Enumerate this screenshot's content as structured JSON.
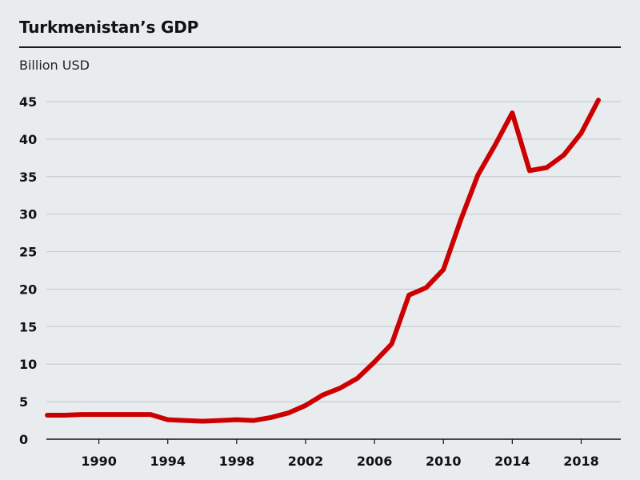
{
  "chart_data": {
    "type": "line",
    "title": "Turkmenistan’s GDP",
    "ylabel": "Billion USD",
    "xlabel": "",
    "ylim": [
      0,
      45
    ],
    "xlim": [
      1987,
      2019
    ],
    "yticks": [
      0,
      5,
      10,
      15,
      20,
      25,
      30,
      35,
      40,
      45
    ],
    "xticks": [
      1990,
      1994,
      1998,
      2002,
      2006,
      2010,
      2014,
      2018
    ],
    "grid": true,
    "colors": {
      "line": "#cc0000",
      "grid": "#c9cbce",
      "axis": "#111111",
      "background": "#e9ecef"
    },
    "series": [
      {
        "x": [
          1987,
          1988,
          1989,
          1990,
          1991,
          1992,
          1993,
          1994,
          1995,
          1996,
          1997,
          1998,
          1999,
          2000,
          2001,
          2002,
          2003,
          2004,
          2005,
          2006,
          2007,
          2008,
          2009,
          2010,
          2011,
          2012,
          2013,
          2014,
          2015,
          2016,
          2017,
          2018,
          2019
        ],
        "values": [
          3.2,
          3.2,
          3.3,
          3.3,
          3.3,
          3.3,
          3.3,
          2.6,
          2.5,
          2.4,
          2.5,
          2.6,
          2.5,
          2.9,
          3.5,
          4.5,
          5.9,
          6.8,
          8.1,
          10.3,
          12.7,
          19.2,
          20.2,
          22.6,
          29.2,
          35.2,
          39.2,
          43.5,
          35.8,
          36.2,
          37.9,
          40.8,
          45.2
        ]
      }
    ]
  }
}
